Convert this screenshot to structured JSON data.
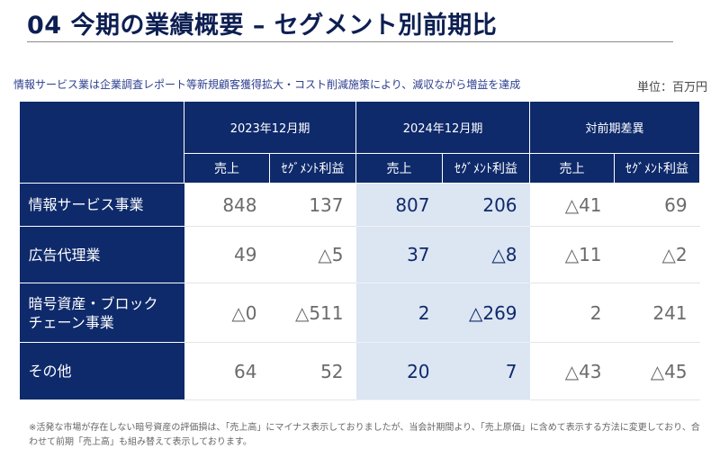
{
  "title": "04 今期の業績概要 – セグメント別前期比",
  "subtitle": "情報サービス業は企業調査レポート等新規顧客獲得拡大・コスト削減施策により、減収ながら増益を達成",
  "unit": "単位：百万円",
  "table": {
    "periods": [
      "2023年12月期",
      "2024年12月期",
      "対前期差異"
    ],
    "subheaders": [
      "売上",
      "ｾｸﾞﾒﾝﾄ利益",
      "売上",
      "ｾｸﾞﾒﾝﾄ利益",
      "売上",
      "ｾｸﾞﾒﾝﾄ利益"
    ],
    "rows": [
      {
        "label": [
          "情報サービス事業"
        ],
        "values": [
          "848",
          "137",
          "807",
          "206",
          "△41",
          "69"
        ]
      },
      {
        "label": [
          "広告代理業"
        ],
        "values": [
          "49",
          "△5",
          "37",
          "△8",
          "△11",
          "△2"
        ]
      },
      {
        "label": [
          "暗号資産・ブロック",
          "チェーン事業"
        ],
        "values": [
          "△0",
          "△511",
          "2",
          "△269",
          "2",
          "241"
        ]
      },
      {
        "label": [
          "その他"
        ],
        "values": [
          "64",
          "52",
          "20",
          "7",
          "△43",
          "△45"
        ]
      }
    ]
  },
  "footnote": "※活発な市場が存在しない暗号資産の評価損は、「売上高」にマイナス表示しておりましたが、当会計期間より、「売上原価」に含めて表示する方法に変更しており、合わせて前期「売上高」も組み替えて表示しております。"
}
